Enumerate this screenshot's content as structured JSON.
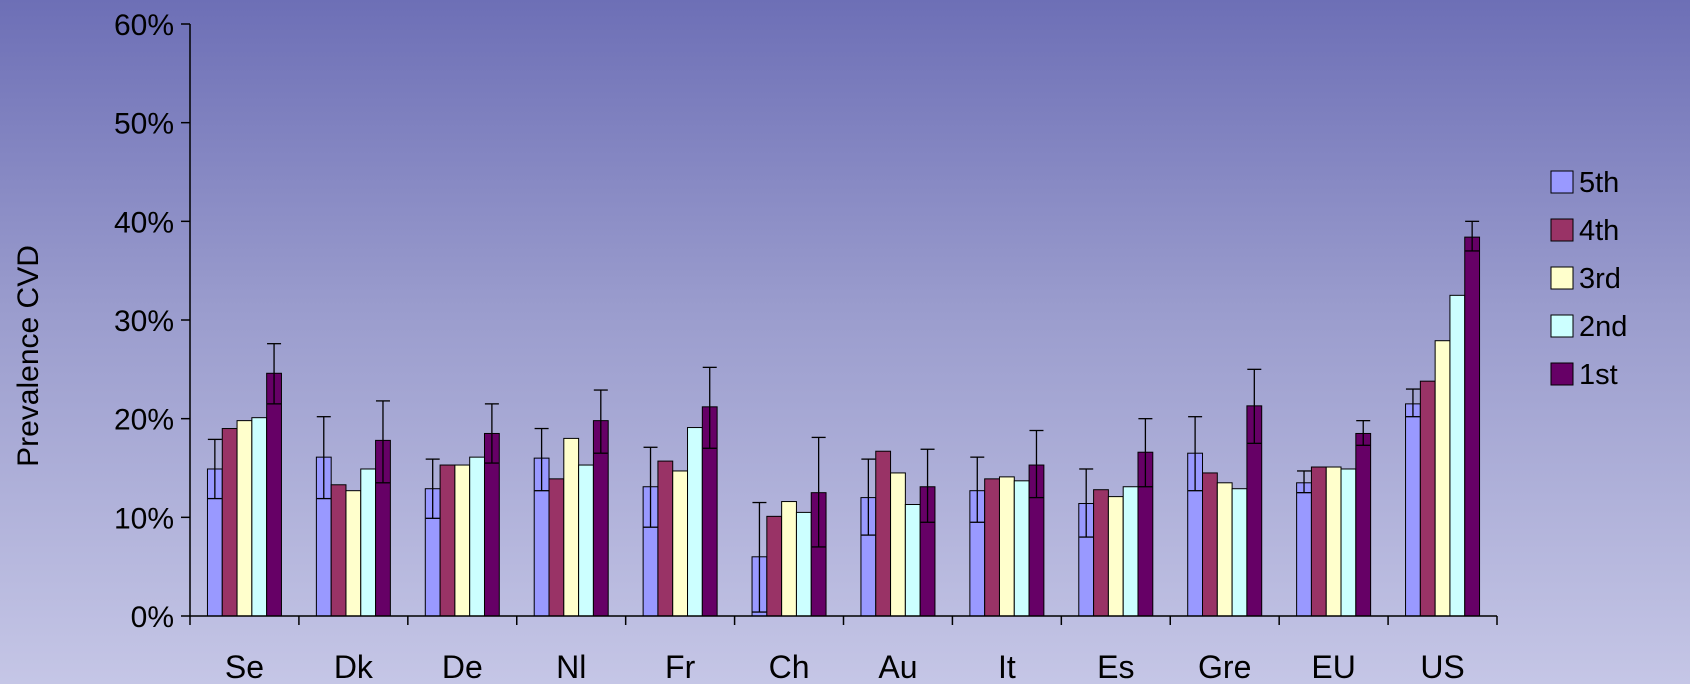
{
  "chart_data": {
    "type": "bar",
    "title": "",
    "xlabel": "",
    "ylabel": "Prevalence CVD",
    "ylim": [
      0,
      60
    ],
    "yticks": [
      "0%",
      "10%",
      "20%",
      "30%",
      "40%",
      "50%",
      "60%"
    ],
    "grid": false,
    "legend_position": "right",
    "categories": [
      "Se",
      "Dk",
      "De",
      "Nl",
      "Fr",
      "Ch",
      "Au",
      "It",
      "Es",
      "Gre",
      "EU",
      "US"
    ],
    "series": [
      {
        "name": "5th",
        "color": "#9999ff",
        "values": [
          14.9,
          16.1,
          12.9,
          16.0,
          13.1,
          6.0,
          12.0,
          12.7,
          11.4,
          16.5,
          13.5,
          21.5
        ],
        "err_low": [
          11.9,
          11.9,
          9.9,
          12.7,
          9.0,
          0.4,
          8.2,
          9.5,
          8.0,
          12.7,
          12.5,
          20.2
        ],
        "err_high": [
          17.9,
          20.2,
          15.9,
          19.0,
          17.1,
          11.5,
          15.9,
          16.1,
          14.9,
          20.2,
          14.7,
          23.0
        ]
      },
      {
        "name": "4th",
        "color": "#993366",
        "values": [
          19.0,
          13.3,
          15.3,
          13.9,
          15.7,
          10.1,
          16.7,
          13.9,
          12.8,
          14.5,
          15.1,
          23.8
        ]
      },
      {
        "name": "3rd",
        "color": "#ffffcc",
        "values": [
          19.8,
          12.7,
          15.3,
          18.0,
          14.7,
          11.6,
          14.5,
          14.1,
          12.1,
          13.5,
          15.1,
          27.9
        ]
      },
      {
        "name": "2nd",
        "color": "#ccffff",
        "values": [
          20.1,
          14.9,
          16.1,
          15.3,
          19.1,
          10.5,
          11.3,
          13.7,
          13.1,
          12.9,
          14.9,
          32.5
        ]
      },
      {
        "name": "1st",
        "color": "#660066",
        "values": [
          24.6,
          17.8,
          18.5,
          19.8,
          21.2,
          12.5,
          13.1,
          15.3,
          16.6,
          21.3,
          18.5,
          38.4
        ],
        "err_low": [
          21.5,
          13.5,
          15.5,
          16.5,
          17.0,
          7.0,
          9.5,
          12.0,
          13.1,
          17.5,
          17.3,
          37.0
        ],
        "err_high": [
          27.6,
          21.8,
          21.5,
          22.9,
          25.2,
          18.1,
          16.9,
          18.8,
          20.0,
          25.0,
          19.8,
          40.0
        ]
      }
    ]
  }
}
